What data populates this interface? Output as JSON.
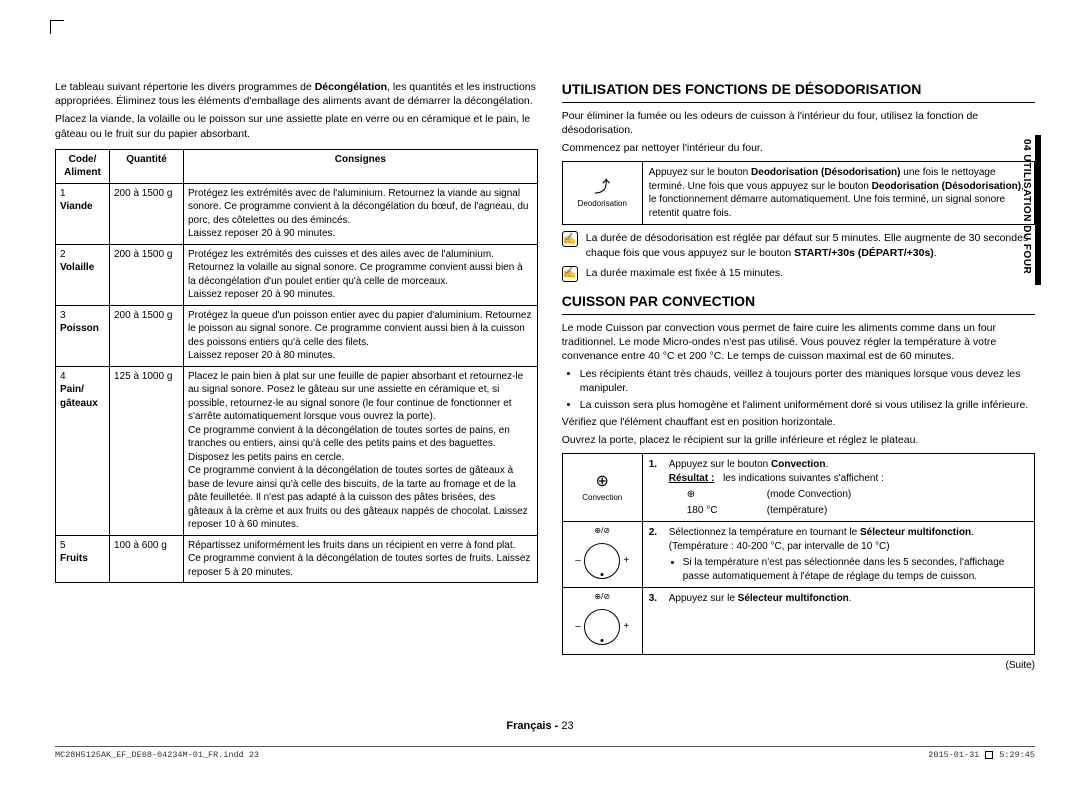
{
  "side_tab": "04  UTILISATION DU FOUR",
  "left": {
    "intro1a": "Le tableau suivant répertorie les divers programmes de ",
    "intro1b": "Décongélation",
    "intro1c": ", les quantités et les instructions appropriées. Éliminez tous les éléments d'emballage des aliments avant de démarrer la décongélation.",
    "intro2": "Placez la viande, la volaille ou le poisson sur une assiette plate en verre ou en céramique et le pain, le gâteau ou le fruit sur du papier absorbant.",
    "th_code": "Code/ Aliment",
    "th_qty": "Quantité",
    "th_cons": "Consignes",
    "rows": [
      {
        "num": "1",
        "name": "Viande",
        "qty": "200 à 1500 g",
        "cons": "Protégez les extrémités avec de l'aluminium. Retournez la viande au signal sonore. Ce programme convient à la décongélation du bœuf, de l'agneau, du porc, des côtelettes ou des émincés.\nLaissez reposer 20 à 90 minutes."
      },
      {
        "num": "2",
        "name": "Volaille",
        "qty": "200 à 1500 g",
        "cons": "Protégez les extrémités des cuisses et des ailes avec de l'aluminium. Retournez la volaille au signal sonore. Ce programme convient aussi bien à la décongélation d'un poulet entier qu'à celle de morceaux.\nLaissez reposer 20 à 90 minutes."
      },
      {
        "num": "3",
        "name": "Poisson",
        "qty": "200 à 1500 g",
        "cons": "Protégez la queue d'un poisson entier avec du papier d'aluminium. Retournez le poisson au signal sonore. Ce programme convient aussi bien à la cuisson des poissons entiers qu'à celle des filets.\nLaissez reposer 20 à 80 minutes."
      },
      {
        "num": "4",
        "name": "Pain/ gâteaux",
        "qty": "125 à 1000 g",
        "cons": "Placez le pain bien à plat sur une feuille de papier absorbant et retournez-le au signal sonore. Posez le gâteau sur une assiette en céramique et, si possible, retournez-le au signal sonore (le four continue de fonctionner et s'arrête automatiquement lorsque vous ouvrez la porte).\nCe programme convient à la décongélation de toutes sortes de pains, en tranches ou entiers, ainsi qu'à celle des petits pains et des baguettes. Disposez les petits pains en cercle.\nCe programme convient à la décongélation de toutes sortes de gâteaux à base de levure ainsi qu'à celle des biscuits, de la tarte au fromage et de la pâte feuilletée. Il n'est pas adapté à la cuisson des pâtes brisées, des gâteaux à la crème et aux fruits ou des gâteaux nappés de chocolat. Laissez reposer 10 à 60 minutes."
      },
      {
        "num": "5",
        "name": "Fruits",
        "qty": "100 à 600 g",
        "cons": "Répartissez uniformément les fruits dans un récipient en verre à fond plat.\nCe programme convient à la décongélation de toutes sortes de fruits. Laissez reposer 5 à 20 minutes."
      }
    ]
  },
  "right": {
    "h_deo": "UTILISATION DES FONCTIONS DE DÉSODORISATION",
    "deo_p1": "Pour éliminer la fumée ou les odeurs de cuisson à l'intérieur du four, utilisez la fonction de désodorisation.",
    "deo_p2": "Commencez par nettoyer l'intérieur du four.",
    "deo_box_label": "Deodorisation",
    "deo_box_txt1": "Appuyez sur le bouton ",
    "deo_box_b1": "Deodorisation (Désodorisation)",
    "deo_box_txt2": " une fois le nettoyage terminé. Une fois que vous appuyez sur le bouton ",
    "deo_box_b2": "Deodorisation (Désodorisation)",
    "deo_box_txt3": ", le fonctionnement démarre automatiquement. Une fois terminé, un signal sonore retentit quatre fois.",
    "deo_w1a": "La durée de désodorisation est réglée par défaut sur 5 minutes. Elle augmente de 30 secondes chaque fois que vous appuyez sur le bouton ",
    "deo_w1b": "START/+30s (DÉPART/+30s)",
    "deo_w1c": ".",
    "deo_w2": "La durée maximale est fixée à 15 minutes.",
    "h_conv": "CUISSON PAR CONVECTION",
    "conv_p1": "Le mode Cuisson par convection vous permet de faire cuire les aliments comme dans un four traditionnel. Le mode Micro-ondes n'est pas utilisé. Vous pouvez régler la température à votre convenance entre 40 °C et 200 °C. Le temps de cuisson maximal est de 60 minutes.",
    "conv_li1": "Les récipients étant très chauds, veillez à toujours porter des maniques lorsque vous devez les manipuler.",
    "conv_li2": "La cuisson sera plus homogène et l'aliment uniformément doré si vous utilisez la grille inférieure.",
    "conv_p2": "Vérifiez que l'élément chauffant est en position horizontale.",
    "conv_p3": "Ouvrez la porte, placez le récipient sur la grille inférieure et réglez le plateau.",
    "conv_icon_label": "Convection",
    "step1_a": "Appuyez sur le bouton ",
    "step1_b": "Convection",
    "step1_c": ".",
    "step1_res_lbl": "Résultat :",
    "step1_res_txt": "les indications suivantes s'affichent :",
    "step1_g1a": "⊕",
    "step1_g1b": "(mode Convection)",
    "step1_g2a": "180 °C",
    "step1_g2b": "(température)",
    "step2_a": "Sélectionnez la température en tournant le ",
    "step2_b": "Sélecteur multifonction",
    "step2_c": ".",
    "step2_sub": "(Température : 40-200 °C, par intervalle de 10 °C)",
    "step2_li": "Si la température n'est pas sélectionnée dans les 5 secondes, l'affichage passe automatiquement à l'étape de réglage du temps de cuisson.",
    "step3_a": "Appuyez sur le ",
    "step3_b": "Sélecteur multifonction",
    "step3_c": ".",
    "suite": "(Suite)"
  },
  "footer": {
    "center_a": "Français - ",
    "center_b": "23",
    "left": "MC28H5125AK_EF_DE68-04234M-01_FR.indd   23",
    "right_date": "2015-01-31",
    "right_time": "5:29:45"
  }
}
